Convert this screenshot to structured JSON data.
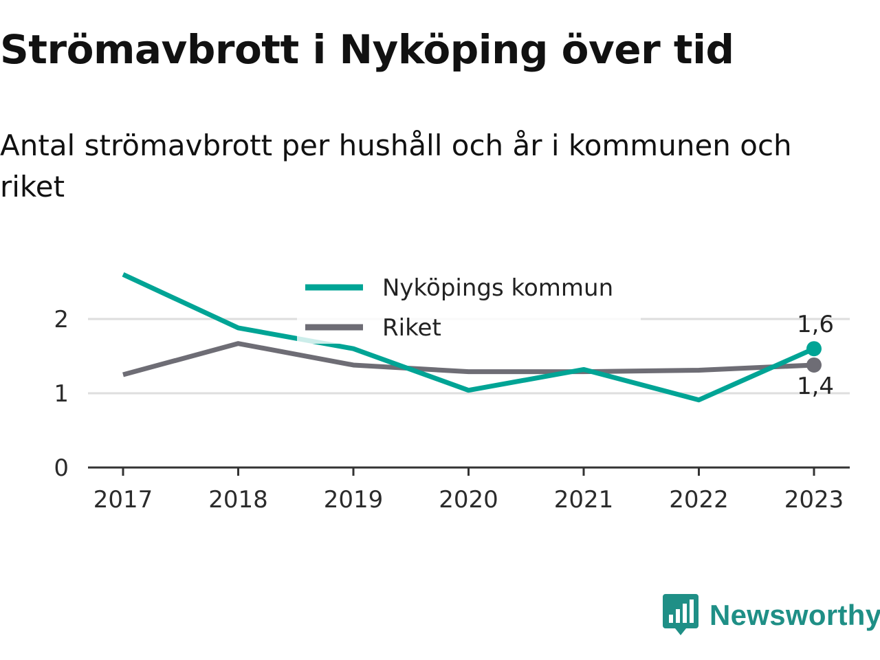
{
  "header": {
    "title": "Strömavbrott i Nyköping över tid",
    "subtitle": "Antal strömavbrott per hushåll och år i kommunen och riket"
  },
  "brand": {
    "name": "Newsworthy",
    "icon": "newsworthy-logo-icon",
    "color": "#1f8f86"
  },
  "chart_data": {
    "type": "line",
    "x": [
      "2017",
      "2018",
      "2019",
      "2020",
      "2021",
      "2022",
      "2023"
    ],
    "ylim": [
      0,
      2.6
    ],
    "yticks": [
      0,
      1,
      2
    ],
    "ytick_labels": [
      "0",
      "1",
      "2"
    ],
    "grid": true,
    "legend": "top-center",
    "series": [
      {
        "name": "Nyköpings kommun",
        "color": "#00a495",
        "values": [
          2.6,
          1.88,
          1.6,
          1.04,
          1.32,
          0.91,
          1.6
        ],
        "end_label": "1,6"
      },
      {
        "name": "Riket",
        "color": "#6e6d75",
        "values": [
          1.25,
          1.67,
          1.38,
          1.29,
          1.29,
          1.31,
          1.38
        ],
        "end_label": "1,4"
      }
    ]
  }
}
